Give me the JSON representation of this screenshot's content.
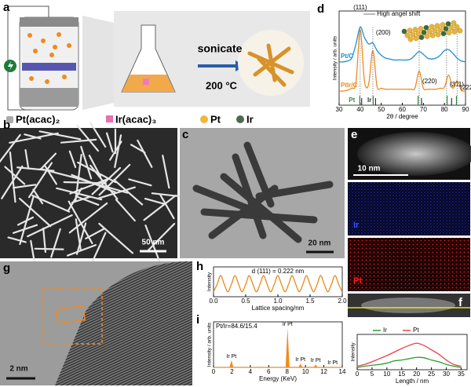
{
  "panel_labels": [
    "a",
    "b",
    "c",
    "d",
    "e",
    "f",
    "g",
    "h",
    "i"
  ],
  "scheme": {
    "step": "sonicate",
    "condition": "200 °C",
    "legend": [
      "Pt(acac)₂",
      "Ir(acac)₃",
      "Pt",
      "Ir"
    ]
  },
  "scale_bars": {
    "b": "50 nm",
    "c": "20 nm",
    "e": "10 nm",
    "g": "2 nm"
  },
  "map_labels": [
    "Ir",
    "Pt"
  ],
  "chart_data": [
    {
      "type": "line",
      "xlabel": "2θ / degree",
      "ylabel": "Intensity / arb. units",
      "xlim": [
        30,
        90
      ],
      "xticks": [
        30,
        40,
        50,
        60,
        70,
        80,
        90
      ],
      "ylim": [
        0,
        10
      ],
      "legend": "inline",
      "x": [
        30,
        32,
        34,
        36,
        38,
        40,
        42,
        44,
        46,
        48,
        50,
        52,
        54,
        56,
        58,
        60,
        62,
        64,
        66,
        68,
        70,
        72,
        74,
        76,
        78,
        80,
        82,
        84,
        86,
        88,
        90
      ],
      "series": [
        {
          "name": "Pt/C",
          "color": "#1f8fd6",
          "values": [
            4.6,
            4.6,
            4.7,
            5.0,
            6.5,
            8.3,
            7.2,
            6.5,
            6.6,
            5.8,
            5.3,
            5.0,
            4.9,
            4.8,
            4.8,
            4.8,
            4.8,
            4.9,
            5.3,
            5.7,
            5.4,
            5.0,
            4.9,
            5.0,
            5.3,
            5.8,
            5.9,
            5.5,
            5.0,
            4.7,
            4.6
          ]
        },
        {
          "name": "PtIr/C",
          "color": "#f08a1c",
          "values": [
            1.5,
            1.5,
            1.6,
            1.8,
            2.4,
            8.0,
            2.6,
            2.2,
            5.8,
            2.0,
            1.8,
            1.7,
            1.7,
            1.7,
            1.7,
            1.7,
            1.7,
            1.7,
            1.8,
            3.6,
            1.8,
            1.7,
            1.7,
            1.7,
            1.8,
            1.9,
            3.2,
            1.8,
            2.6,
            1.6,
            1.5
          ]
        }
      ],
      "references": [
        {
          "name": "Pt",
          "color": "#2e8b3e",
          "x": [
            39.8,
            46.2,
            67.5,
            81.3,
            85.7
          ]
        },
        {
          "name": "Ir",
          "color": "#333333",
          "x": [
            40.7,
            47.3,
            69.1,
            83.4
          ]
        }
      ],
      "annotations": [
        {
          "text": "(111)",
          "x": 40
        },
        {
          "text": "(200)",
          "x": 46
        },
        {
          "text": "(220)",
          "x": 68
        },
        {
          "text": "(311)",
          "x": 81
        },
        {
          "text": "(222)",
          "x": 86
        },
        {
          "text": "High angel shift",
          "x": 40.5
        }
      ]
    },
    {
      "type": "line",
      "xlabel": "Lattice spacing/nm",
      "ylabel": "Intensity",
      "annotation": "d (111) = 0.222 nm",
      "xlim": [
        0,
        2
      ],
      "xticks": [
        {
          "value": 0,
          "label": "0.0"
        },
        0.5,
        {
          "value": 1,
          "label": "1.0"
        },
        1.5,
        {
          "value": 2,
          "label": "2.0"
        }
      ],
      "ylim": [
        0,
        1.2
      ],
      "x": [
        0,
        0.056,
        0.111,
        0.167,
        0.222,
        0.278,
        0.333,
        0.389,
        0.444,
        0.5,
        0.555,
        0.611,
        0.666,
        0.722,
        0.777,
        0.833,
        0.888,
        0.944,
        0.999,
        1.055,
        1.11,
        1.166,
        1.221,
        1.277,
        1.332,
        1.388,
        1.443,
        1.499,
        1.554,
        1.61,
        1.665,
        1.721,
        1.776,
        1.832,
        1.887,
        1.943,
        1.998
      ],
      "series": [
        {
          "name": null,
          "color": "#e8891e",
          "values": [
            0.2,
            0.5,
            0.85,
            0.5,
            0.2,
            0.5,
            0.85,
            0.5,
            0.2,
            0.5,
            0.85,
            0.5,
            0.2,
            0.5,
            0.85,
            0.5,
            0.2,
            0.5,
            0.85,
            0.5,
            0.2,
            0.5,
            0.85,
            0.5,
            0.2,
            0.5,
            0.85,
            0.5,
            0.2,
            0.5,
            0.85,
            0.5,
            0.2,
            0.5,
            0.85,
            0.5,
            0.2
          ]
        }
      ]
    },
    {
      "type": "spectrum",
      "xlabel": "Energy (KeV)",
      "ylabel": "Intensity / arb. units",
      "annotation": "Pt/Ir=84.6/15.4",
      "xlim": [
        0,
        14
      ],
      "xticks": [
        0,
        2,
        4,
        6,
        8,
        10,
        12,
        14
      ],
      "ylim": [
        0,
        1.1
      ],
      "color": "#f28a1c",
      "x": [
        1.95,
        8.05,
        9.45,
        11.1,
        12.95
      ],
      "values": [
        0.17,
        0.95,
        0.09,
        0.07,
        0.02
      ],
      "peak_labels": [
        "Ir Pt",
        "Ir Pt",
        "Ir Pt",
        "Ir Pt",
        "Ir Pt"
      ]
    },
    {
      "type": "line",
      "xlabel": "Length / nm",
      "ylabel": "Intensity",
      "legend": "top",
      "xlim": [
        0,
        37
      ],
      "xticks": [
        0,
        5,
        10,
        15,
        20,
        25,
        30,
        35
      ],
      "ylim": [
        0,
        0.8
      ],
      "x": [
        0,
        2.5,
        5,
        7.5,
        10,
        12.5,
        15,
        17.5,
        20,
        22.5,
        25,
        27.5,
        30,
        32.5,
        35
      ],
      "series": [
        {
          "name": "Ir",
          "color": "#2e9a2e",
          "values": [
            0.05,
            0.08,
            0.1,
            0.12,
            0.15,
            0.2,
            0.22,
            0.25,
            0.28,
            0.27,
            0.22,
            0.18,
            0.12,
            0.08,
            0.05
          ]
        },
        {
          "name": "Pt",
          "color": "#e8424a",
          "values": [
            0.08,
            0.12,
            0.18,
            0.25,
            0.32,
            0.4,
            0.48,
            0.55,
            0.6,
            0.55,
            0.45,
            0.35,
            0.22,
            0.12,
            0.08
          ]
        }
      ]
    }
  ]
}
